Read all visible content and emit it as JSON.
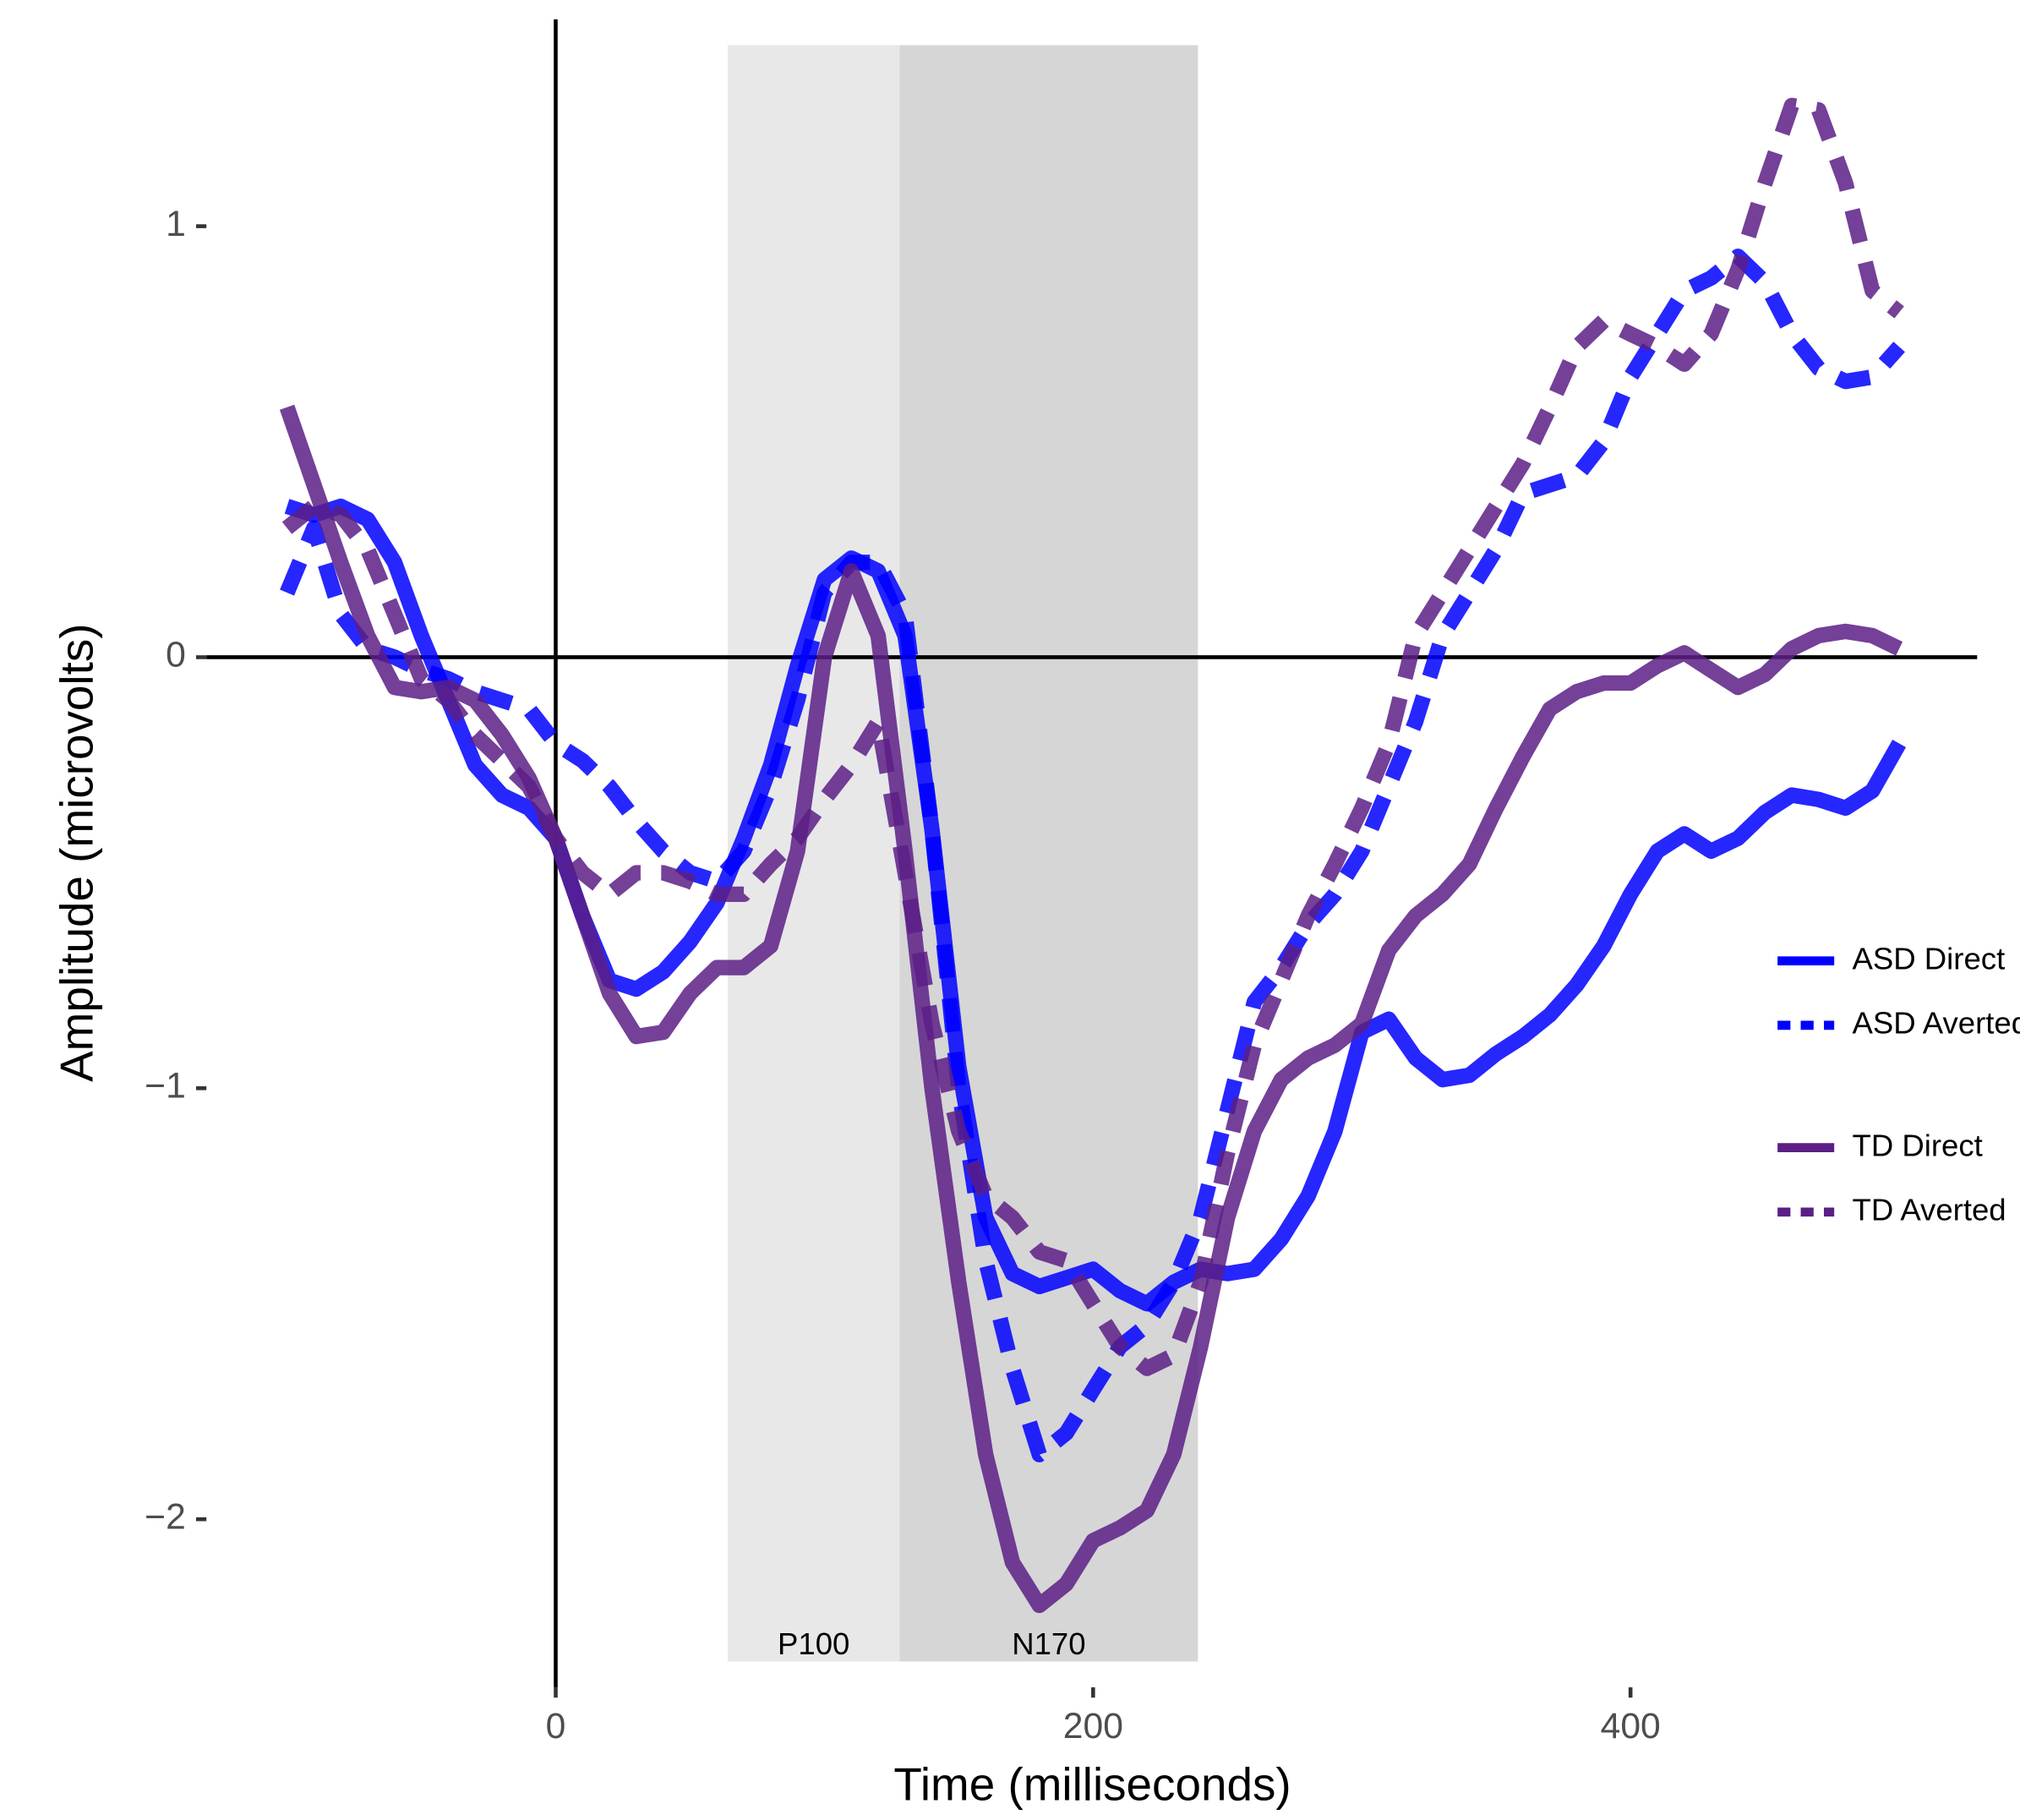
{
  "chart_data": {
    "type": "line",
    "x_label": "Time (milliseconds)",
    "y_label": "Amplitude (microvolts)",
    "xlim": [
      -130,
      529
    ],
    "ylim": [
      -2.39,
      1.48
    ],
    "xticks": [
      0,
      200,
      400
    ],
    "yticks": [
      {
        "value": -2,
        "label": "−2"
      },
      {
        "value": -1,
        "label": "−1"
      },
      0,
      1
    ],
    "hline": 0,
    "vline": 0,
    "regions": [
      {
        "label": "P100",
        "xlim": [
          64,
          128
        ],
        "ylim": [
          -2.33,
          1.42
        ],
        "color": "#e8e8e8"
      },
      {
        "label": "N170",
        "xlim": [
          128,
          239
        ],
        "ylim": [
          -2.33,
          1.42
        ],
        "color": "#d6d6d6"
      }
    ],
    "x": [
      -100,
      -90,
      -80,
      -70,
      -60,
      -50,
      -40,
      -30,
      -20,
      -10,
      0,
      10,
      20,
      30,
      40,
      50,
      60,
      70,
      80,
      90,
      100,
      110,
      120,
      130,
      140,
      150,
      160,
      170,
      180,
      190,
      200,
      210,
      220,
      230,
      240,
      250,
      260,
      270,
      280,
      290,
      300,
      310,
      320,
      330,
      340,
      350,
      360,
      370,
      380,
      390,
      400,
      410,
      420,
      430,
      440,
      450,
      460,
      470,
      480,
      490,
      500
    ],
    "series": [
      {
        "name": "ASD Direct",
        "color": "#0000ff",
        "dashed": false,
        "values": [
          0.35,
          0.33,
          0.35,
          0.32,
          0.22,
          0.05,
          -0.1,
          -0.25,
          -0.32,
          -0.35,
          -0.42,
          -0.6,
          -0.75,
          -0.77,
          -0.73,
          -0.66,
          -0.57,
          -0.42,
          -0.25,
          -0.02,
          0.18,
          0.23,
          0.2,
          0.05,
          -0.4,
          -0.95,
          -1.3,
          -1.43,
          -1.46,
          -1.44,
          -1.42,
          -1.47,
          -1.5,
          -1.45,
          -1.42,
          -1.43,
          -1.42,
          -1.35,
          -1.25,
          -1.1,
          -0.87,
          -0.84,
          -0.93,
          -0.98,
          -0.97,
          -0.92,
          -0.88,
          -0.83,
          -0.76,
          -0.67,
          -0.55,
          -0.45,
          -0.41,
          -0.45,
          -0.42,
          -0.36,
          -0.32,
          -0.33,
          -0.35,
          -0.31,
          -0.2
        ]
      },
      {
        "name": "ASD Averted",
        "color": "#0000ff",
        "dashed": true,
        "values": [
          0.15,
          0.3,
          0.1,
          0.02,
          0.0,
          -0.03,
          -0.05,
          -0.08,
          -0.1,
          -0.12,
          -0.2,
          -0.24,
          -0.3,
          -0.38,
          -0.45,
          -0.5,
          -0.52,
          -0.45,
          -0.3,
          -0.1,
          0.15,
          0.22,
          0.22,
          0.1,
          -0.4,
          -1.0,
          -1.4,
          -1.65,
          -1.85,
          -1.8,
          -1.7,
          -1.6,
          -1.55,
          -1.45,
          -1.3,
          -1.05,
          -0.8,
          -0.72,
          -0.62,
          -0.55,
          -0.45,
          -0.3,
          -0.15,
          0.05,
          0.15,
          0.25,
          0.38,
          0.4,
          0.42,
          0.5,
          0.65,
          0.75,
          0.85,
          0.88,
          0.93,
          0.87,
          0.75,
          0.67,
          0.64,
          0.65,
          0.72
        ]
      },
      {
        "name": "TD Direct",
        "color": "#5c1f86",
        "dashed": false,
        "values": [
          0.58,
          0.4,
          0.22,
          0.05,
          -0.07,
          -0.08,
          -0.07,
          -0.1,
          -0.18,
          -0.28,
          -0.42,
          -0.6,
          -0.78,
          -0.88,
          -0.87,
          -0.78,
          -0.72,
          -0.72,
          -0.67,
          -0.45,
          0.0,
          0.2,
          0.05,
          -0.45,
          -1.0,
          -1.45,
          -1.85,
          -2.1,
          -2.2,
          -2.15,
          -2.05,
          -2.02,
          -1.98,
          -1.85,
          -1.6,
          -1.3,
          -1.1,
          -0.98,
          -0.93,
          -0.9,
          -0.85,
          -0.68,
          -0.6,
          -0.55,
          -0.48,
          -0.35,
          -0.23,
          -0.12,
          -0.08,
          -0.06,
          -0.06,
          -0.02,
          0.01,
          -0.03,
          -0.07,
          -0.04,
          0.02,
          0.05,
          0.06,
          0.05,
          0.02
        ]
      },
      {
        "name": "TD Averted",
        "color": "#5c1f86",
        "dashed": true,
        "values": [
          0.3,
          0.35,
          0.33,
          0.25,
          0.1,
          -0.05,
          -0.1,
          -0.18,
          -0.24,
          -0.3,
          -0.42,
          -0.5,
          -0.55,
          -0.5,
          -0.5,
          -0.52,
          -0.55,
          -0.55,
          -0.48,
          -0.42,
          -0.33,
          -0.25,
          -0.15,
          -0.5,
          -0.85,
          -1.1,
          -1.25,
          -1.3,
          -1.38,
          -1.4,
          -1.5,
          -1.6,
          -1.65,
          -1.62,
          -1.45,
          -1.15,
          -0.9,
          -0.75,
          -0.6,
          -0.48,
          -0.35,
          -0.2,
          0.05,
          0.15,
          0.25,
          0.35,
          0.45,
          0.58,
          0.72,
          0.78,
          0.75,
          0.72,
          0.68,
          0.75,
          0.9,
          1.1,
          1.28,
          1.27,
          1.1,
          0.85,
          0.8
        ]
      }
    ]
  }
}
